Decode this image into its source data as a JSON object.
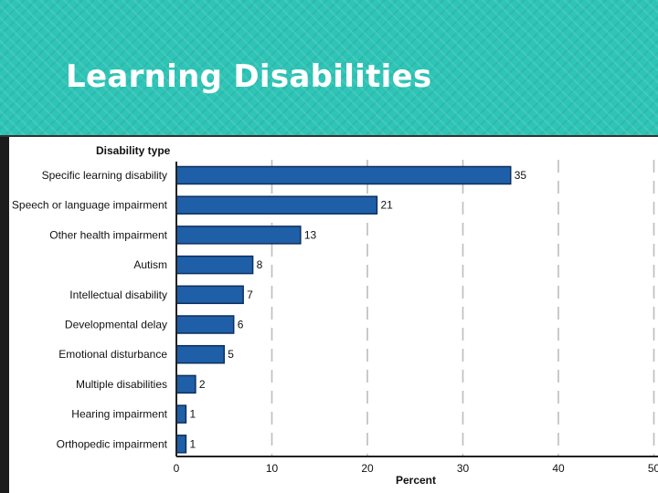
{
  "slide": {
    "title": "Learning Disabilities"
  },
  "colors": {
    "banner": "#2ec4b6",
    "bar": "#1f5fa8",
    "bar_edge": "#0d2f5c"
  },
  "chart_data": {
    "type": "bar",
    "orientation": "horizontal",
    "title": "",
    "ylabel": "Disability type",
    "xlabel": "Percent",
    "xlim": [
      0,
      50
    ],
    "xticks": [
      0,
      10,
      20,
      30,
      40,
      50
    ],
    "grid": "vertical dashed",
    "categories": [
      "Specific learning disability",
      "Speech or language impairment",
      "Other health impairment",
      "Autism",
      "Intellectual disability",
      "Developmental delay",
      "Emotional disturbance",
      "Multiple disabilities",
      "Hearing impairment",
      "Orthopedic impairment"
    ],
    "values": [
      35,
      21,
      13,
      8,
      7,
      6,
      5,
      2,
      1,
      1
    ],
    "data_labels": [
      "35",
      "21",
      "13",
      "8",
      "7",
      "6",
      "5",
      "2",
      "1",
      "1"
    ]
  }
}
